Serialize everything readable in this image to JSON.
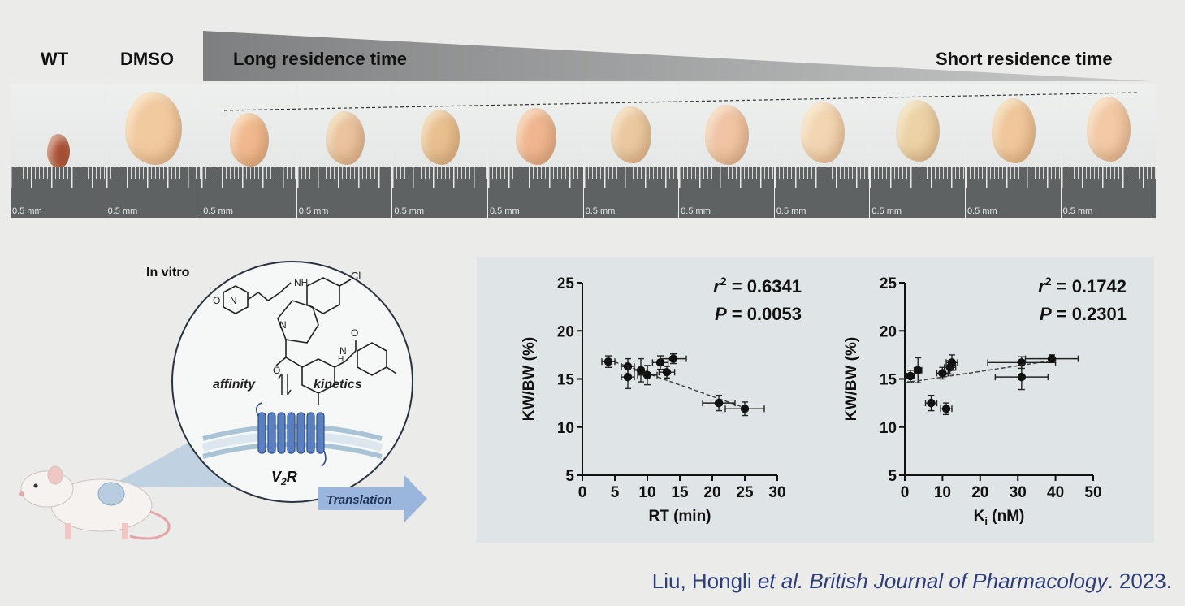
{
  "header": {
    "wt": "WT",
    "dmso": "DMSO",
    "long_residence": "Long residence time",
    "short_residence": "Short residence time"
  },
  "ruler_label": "0.5 mm",
  "panel_count": 12,
  "schematic": {
    "in_vitro": "In vitro",
    "nh": "NH",
    "n1": "N",
    "o1": "O",
    "cl": "Cl",
    "n2": "N",
    "o2": "O",
    "h": "H",
    "n3": "N",
    "o3": "O",
    "affinity": "affinity",
    "kinetics": "kinetics",
    "receptor": "V",
    "receptor_sub": "2",
    "receptor_tail": "R",
    "translation": "Translation"
  },
  "chart_data": [
    {
      "type": "scatter",
      "xlabel": "RT (min)",
      "ylabel": "KW/BW (%)",
      "xlim": [
        0,
        30
      ],
      "ylim": [
        5,
        25
      ],
      "xticks": [
        0,
        5,
        10,
        15,
        20,
        25,
        30
      ],
      "yticks": [
        5,
        10,
        15,
        20,
        25
      ],
      "annotation_r2": "= 0.6341",
      "annotation_p": "= 0.0053",
      "points": [
        {
          "x": 4,
          "y": 16.8,
          "xerr": 1,
          "yerr": 0.6
        },
        {
          "x": 7,
          "y": 16.3,
          "xerr": 1,
          "yerr": 0.8
        },
        {
          "x": 7,
          "y": 15.2,
          "xerr": 1,
          "yerr": 1.2
        },
        {
          "x": 9,
          "y": 15.9,
          "xerr": 1,
          "yerr": 1.2
        },
        {
          "x": 10,
          "y": 15.4,
          "xerr": 1.5,
          "yerr": 1.0
        },
        {
          "x": 12,
          "y": 16.7,
          "xerr": 1.2,
          "yerr": 0.7
        },
        {
          "x": 13,
          "y": 15.7,
          "xerr": 1.2,
          "yerr": 0.6
        },
        {
          "x": 14,
          "y": 17.1,
          "xerr": 2.0,
          "yerr": 0.5
        },
        {
          "x": 21,
          "y": 12.5,
          "xerr": 2.5,
          "yerr": 0.8
        },
        {
          "x": 25,
          "y": 11.9,
          "xerr": 3.0,
          "yerr": 0.7
        }
      ],
      "fit": {
        "x1": 4,
        "y1": 17.0,
        "x2": 25,
        "y2": 12.0
      }
    },
    {
      "type": "scatter",
      "xlabel": "K",
      "xlabel_sub": "i",
      "xlabel_tail": " (nM)",
      "ylabel": "KW/BW (%)",
      "xlim": [
        0,
        50
      ],
      "ylim": [
        5,
        25
      ],
      "xticks": [
        0,
        10,
        20,
        30,
        40,
        50
      ],
      "yticks": [
        5,
        10,
        15,
        20,
        25
      ],
      "annotation_r2": "= 0.1742",
      "annotation_p": "= 0.2301",
      "points": [
        {
          "x": 1.5,
          "y": 15.3,
          "xerr": 1,
          "yerr": 0.6
        },
        {
          "x": 3.5,
          "y": 15.9,
          "xerr": 1,
          "yerr": 1.3
        },
        {
          "x": 7,
          "y": 12.5,
          "xerr": 1.5,
          "yerr": 0.8
        },
        {
          "x": 10,
          "y": 15.6,
          "xerr": 1.5,
          "yerr": 0.6
        },
        {
          "x": 11,
          "y": 11.9,
          "xerr": 1.5,
          "yerr": 0.6
        },
        {
          "x": 12,
          "y": 16.2,
          "xerr": 1.5,
          "yerr": 0.7
        },
        {
          "x": 12.5,
          "y": 16.7,
          "xerr": 1.5,
          "yerr": 0.8
        },
        {
          "x": 31,
          "y": 16.7,
          "xerr": 9,
          "yerr": 0.6
        },
        {
          "x": 31,
          "y": 15.2,
          "xerr": 7,
          "yerr": 1.3
        },
        {
          "x": 39,
          "y": 17.1,
          "xerr": 7,
          "yerr": 0.4
        }
      ],
      "fit": {
        "x1": 0,
        "y1": 14.6,
        "x2": 39,
        "y2": 16.9
      }
    }
  ],
  "citation": {
    "authors": "Liu, Hongli ",
    "etal": "et al. British Journal of Pharmacology",
    "year": ". 2023."
  }
}
